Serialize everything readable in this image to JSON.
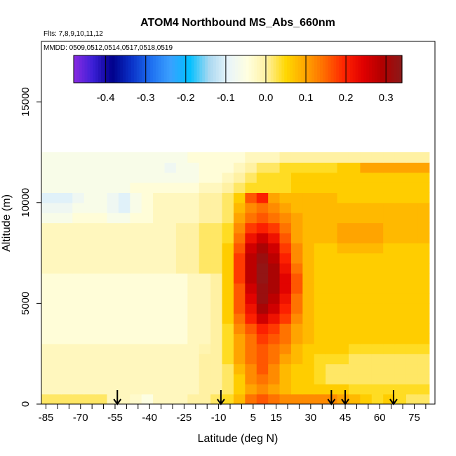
{
  "chart_data": {
    "type": "heatmap",
    "title": "ATOM4 Northbound MS_Abs_660nm",
    "subtitle_flights": "Flts: 7,8,9,10,11,12",
    "subtitle_dates": "MMDD: 0509,0512,0514,0517,0518,0519",
    "xlabel": "Latitude (deg N)",
    "ylabel": "Altitude (m)",
    "xlim": [
      -87,
      84
    ],
    "ylim": [
      0,
      18000
    ],
    "x_ticks": [
      -85,
      -70,
      -55,
      -40,
      -25,
      -10,
      5,
      15,
      30,
      45,
      60,
      75
    ],
    "x_ticks_minor": [
      -80,
      -75,
      -65,
      -60,
      -50,
      -45,
      -35,
      -30,
      -20,
      -15,
      -5,
      0,
      10,
      20,
      25,
      35,
      40,
      50,
      55,
      65,
      70,
      80
    ],
    "y_ticks": [
      0,
      5000,
      10000,
      15000
    ],
    "colorbar": {
      "ticks": [
        -0.4,
        -0.3,
        -0.2,
        -0.1,
        0.0,
        0.1,
        0.2,
        0.3
      ],
      "tick_labels": [
        "-0.4",
        "-0.3",
        "-0.2",
        "-0.1",
        "0.0",
        "0.1",
        "0.2",
        "0.3"
      ],
      "range": [
        -0.48,
        0.34
      ],
      "colors": [
        "#8a2be2",
        "#3b1fd6",
        "#00008b",
        "#0a32c8",
        "#1e6ff0",
        "#3aa0ff",
        "#00bfff",
        "#a8d8f0",
        "#e8f4fa",
        "#ffffe0",
        "#fff0a0",
        "#ffd700",
        "#ffa500",
        "#ff6a00",
        "#ff2400",
        "#e00000",
        "#b00000",
        "#8b1a1a"
      ]
    },
    "arrows_latitude": [
      -54,
      -9,
      39,
      45,
      66
    ],
    "latitude_bins": [
      -86,
      -81,
      -76,
      -71,
      -66,
      -61,
      -56,
      -51,
      -46,
      -41,
      -36,
      -31,
      -26,
      -21,
      -16,
      -11,
      -6,
      -1,
      4,
      9,
      14,
      19,
      24,
      29,
      34,
      39,
      44,
      49,
      54,
      59,
      64,
      69,
      74,
      79
    ],
    "altitude_bins": [
      250,
      750,
      1250,
      1750,
      2250,
      2750,
      3250,
      3750,
      4250,
      4750,
      5250,
      5750,
      6250,
      6750,
      7250,
      7750,
      8250,
      8750,
      9250,
      9750,
      10250,
      10750,
      11250,
      11750,
      12250
    ],
    "values": [
      [
        0.02,
        0.02,
        0.02,
        0.02,
        0.02,
        0.02,
        -0.02,
        -0.02,
        -0.03,
        -0.05,
        -0.02,
        -0.02,
        -0.02,
        0.0,
        0.0,
        0.02,
        0.04,
        0.08,
        0.14,
        0.16,
        0.14,
        0.12,
        0.12,
        0.12,
        0.12,
        0.12,
        0.1,
        0.08,
        0.06,
        0.04,
        0.06,
        0.04,
        0.02,
        0.02
      ],
      [
        -0.02,
        -0.02,
        -0.02,
        -0.02,
        -0.02,
        -0.02,
        -0.02,
        -0.02,
        -0.02,
        -0.02,
        -0.02,
        -0.02,
        -0.02,
        -0.02,
        0.0,
        0.0,
        0.02,
        0.06,
        0.1,
        0.12,
        0.1,
        0.08,
        0.06,
        0.06,
        0.06,
        0.06,
        0.06,
        0.04,
        0.04,
        0.04,
        0.04,
        0.04,
        0.04,
        0.04
      ],
      [
        -0.02,
        -0.02,
        -0.02,
        -0.02,
        -0.02,
        -0.02,
        -0.02,
        -0.02,
        -0.02,
        -0.02,
        -0.02,
        -0.02,
        -0.02,
        -0.02,
        0.0,
        0.0,
        0.02,
        0.06,
        0.12,
        0.14,
        0.12,
        0.08,
        0.06,
        0.06,
        0.04,
        0.02,
        0.02,
        0.02,
        0.02,
        0.02,
        0.02,
        0.02,
        0.02,
        0.02
      ],
      [
        -0.02,
        -0.02,
        -0.02,
        -0.02,
        -0.02,
        -0.02,
        -0.02,
        -0.02,
        -0.02,
        -0.02,
        -0.02,
        -0.02,
        -0.02,
        -0.02,
        0.0,
        0.0,
        0.02,
        0.08,
        0.12,
        0.16,
        0.12,
        0.08,
        0.06,
        0.06,
        0.04,
        0.02,
        0.02,
        0.02,
        0.02,
        0.02,
        0.02,
        0.02,
        0.02,
        0.02
      ],
      [
        -0.02,
        -0.02,
        -0.02,
        -0.02,
        -0.02,
        -0.02,
        -0.02,
        -0.02,
        -0.02,
        -0.02,
        -0.02,
        -0.02,
        -0.02,
        -0.02,
        0.0,
        0.0,
        0.04,
        0.1,
        0.14,
        0.16,
        0.14,
        0.1,
        0.08,
        0.06,
        0.04,
        0.04,
        0.04,
        0.02,
        0.02,
        0.02,
        0.02,
        0.02,
        0.02,
        0.02
      ],
      [
        -0.02,
        -0.02,
        -0.02,
        -0.02,
        -0.02,
        -0.02,
        -0.02,
        -0.02,
        -0.02,
        -0.02,
        -0.02,
        -0.02,
        -0.02,
        -0.02,
        -0.01,
        0.0,
        0.04,
        0.1,
        0.14,
        0.16,
        0.14,
        0.12,
        0.08,
        0.06,
        0.06,
        0.06,
        0.06,
        0.04,
        0.04,
        0.04,
        0.04,
        0.04,
        0.04,
        0.04
      ],
      [
        -0.04,
        -0.04,
        -0.04,
        -0.04,
        -0.04,
        -0.04,
        -0.04,
        -0.04,
        -0.04,
        -0.04,
        -0.04,
        -0.04,
        -0.04,
        -0.02,
        -0.02,
        0.0,
        0.04,
        0.1,
        0.14,
        0.18,
        0.16,
        0.14,
        0.1,
        0.08,
        0.06,
        0.06,
        0.06,
        0.06,
        0.06,
        0.06,
        0.06,
        0.06,
        0.06,
        0.06
      ],
      [
        -0.04,
        -0.04,
        -0.04,
        -0.04,
        -0.04,
        -0.04,
        -0.04,
        -0.04,
        -0.04,
        -0.04,
        -0.04,
        -0.04,
        -0.04,
        -0.02,
        -0.02,
        0.0,
        0.04,
        0.12,
        0.16,
        0.2,
        0.18,
        0.14,
        0.1,
        0.08,
        0.06,
        0.06,
        0.06,
        0.06,
        0.06,
        0.06,
        0.06,
        0.06,
        0.06,
        0.06
      ],
      [
        -0.04,
        -0.04,
        -0.04,
        -0.04,
        -0.04,
        -0.04,
        -0.04,
        -0.04,
        -0.04,
        -0.04,
        -0.04,
        -0.04,
        -0.04,
        -0.02,
        -0.02,
        0.0,
        0.06,
        0.14,
        0.2,
        0.26,
        0.22,
        0.18,
        0.12,
        0.08,
        0.06,
        0.06,
        0.06,
        0.06,
        0.06,
        0.06,
        0.06,
        0.06,
        0.06,
        0.06
      ],
      [
        -0.04,
        -0.04,
        -0.04,
        -0.04,
        -0.04,
        -0.04,
        -0.04,
        -0.04,
        -0.04,
        -0.04,
        -0.04,
        -0.04,
        -0.04,
        -0.02,
        -0.02,
        0.0,
        0.06,
        0.16,
        0.22,
        0.3,
        0.26,
        0.2,
        0.14,
        0.08,
        0.06,
        0.06,
        0.06,
        0.06,
        0.06,
        0.06,
        0.06,
        0.06,
        0.06,
        0.06
      ],
      [
        -0.04,
        -0.04,
        -0.04,
        -0.04,
        -0.04,
        -0.04,
        -0.04,
        -0.04,
        -0.04,
        -0.04,
        -0.04,
        -0.04,
        -0.04,
        -0.02,
        -0.02,
        0.0,
        0.06,
        0.16,
        0.24,
        0.32,
        0.28,
        0.22,
        0.14,
        0.08,
        0.06,
        0.06,
        0.06,
        0.06,
        0.06,
        0.06,
        0.06,
        0.06,
        0.06,
        0.06
      ],
      [
        -0.04,
        -0.04,
        -0.04,
        -0.04,
        -0.04,
        -0.04,
        -0.04,
        -0.04,
        -0.04,
        -0.04,
        -0.04,
        -0.04,
        -0.04,
        -0.02,
        -0.02,
        0.0,
        0.06,
        0.16,
        0.26,
        0.32,
        0.3,
        0.24,
        0.16,
        0.08,
        0.06,
        0.06,
        0.06,
        0.06,
        0.06,
        0.06,
        0.06,
        0.06,
        0.06,
        0.06
      ],
      [
        -0.04,
        -0.04,
        -0.04,
        -0.04,
        -0.04,
        -0.04,
        -0.04,
        -0.04,
        -0.04,
        -0.04,
        -0.04,
        -0.04,
        -0.04,
        -0.02,
        -0.02,
        0.0,
        0.06,
        0.18,
        0.28,
        0.33,
        0.3,
        0.24,
        0.16,
        0.08,
        0.06,
        0.06,
        0.06,
        0.06,
        0.06,
        0.06,
        0.06,
        0.06,
        0.06,
        0.06
      ],
      [
        -0.02,
        -0.02,
        -0.02,
        -0.02,
        -0.02,
        -0.02,
        -0.02,
        -0.02,
        -0.02,
        -0.02,
        -0.02,
        -0.02,
        0.0,
        0.0,
        0.02,
        0.02,
        0.06,
        0.18,
        0.28,
        0.33,
        0.3,
        0.22,
        0.14,
        0.08,
        0.06,
        0.06,
        0.06,
        0.06,
        0.06,
        0.06,
        0.06,
        0.06,
        0.06,
        0.06
      ],
      [
        -0.02,
        -0.02,
        -0.02,
        -0.02,
        -0.02,
        -0.02,
        -0.02,
        -0.02,
        -0.02,
        -0.02,
        -0.02,
        -0.02,
        0.0,
        0.0,
        0.02,
        0.02,
        0.06,
        0.18,
        0.28,
        0.32,
        0.28,
        0.2,
        0.12,
        0.08,
        0.06,
        0.06,
        0.06,
        0.06,
        0.06,
        0.06,
        0.06,
        0.06,
        0.06,
        0.06
      ],
      [
        -0.02,
        -0.02,
        -0.02,
        -0.02,
        -0.02,
        -0.02,
        -0.02,
        -0.02,
        -0.02,
        -0.02,
        -0.02,
        -0.02,
        0.0,
        0.0,
        0.02,
        0.02,
        0.06,
        0.16,
        0.26,
        0.3,
        0.26,
        0.18,
        0.12,
        0.08,
        0.06,
        0.06,
        0.08,
        0.08,
        0.08,
        0.08,
        0.06,
        0.06,
        0.06,
        0.06
      ],
      [
        -0.02,
        -0.02,
        -0.02,
        -0.02,
        -0.02,
        -0.02,
        -0.02,
        -0.02,
        -0.02,
        -0.02,
        -0.02,
        -0.02,
        0.0,
        0.0,
        0.02,
        0.02,
        0.04,
        0.14,
        0.22,
        0.26,
        0.22,
        0.16,
        0.1,
        0.08,
        0.08,
        0.08,
        0.1,
        0.1,
        0.1,
        0.1,
        0.08,
        0.08,
        0.08,
        0.08
      ],
      [
        -0.02,
        -0.02,
        -0.02,
        -0.02,
        -0.02,
        -0.02,
        -0.02,
        -0.02,
        -0.02,
        -0.02,
        -0.02,
        -0.02,
        0.0,
        0.0,
        0.02,
        0.02,
        0.04,
        0.12,
        0.18,
        0.2,
        0.18,
        0.14,
        0.1,
        0.08,
        0.08,
        0.08,
        0.1,
        0.1,
        0.1,
        0.1,
        0.08,
        0.08,
        0.08,
        0.08
      ],
      [
        -0.06,
        -0.06,
        -0.06,
        -0.04,
        -0.04,
        -0.04,
        -0.06,
        -0.06,
        -0.04,
        -0.04,
        -0.02,
        -0.02,
        -0.02,
        -0.02,
        0.0,
        0.0,
        0.02,
        0.1,
        0.14,
        0.16,
        0.14,
        0.12,
        0.1,
        0.08,
        0.08,
        0.08,
        0.08,
        0.08,
        0.08,
        0.08,
        0.08,
        0.08,
        0.08,
        0.08
      ],
      [
        -0.08,
        -0.08,
        -0.08,
        -0.06,
        -0.06,
        -0.06,
        -0.08,
        -0.1,
        -0.06,
        -0.04,
        -0.02,
        -0.02,
        -0.02,
        -0.02,
        0.0,
        0.0,
        0.02,
        0.08,
        0.12,
        0.14,
        0.12,
        0.1,
        0.08,
        0.08,
        0.08,
        0.08,
        0.08,
        0.08,
        0.08,
        0.08,
        0.08,
        0.08,
        0.08,
        0.08
      ],
      [
        -0.1,
        -0.1,
        -0.1,
        -0.08,
        -0.06,
        -0.06,
        -0.08,
        -0.1,
        -0.06,
        -0.04,
        -0.02,
        -0.02,
        -0.02,
        -0.02,
        0.0,
        0.0,
        0.02,
        0.06,
        0.16,
        0.2,
        0.1,
        0.08,
        0.08,
        0.08,
        0.08,
        0.08,
        0.06,
        0.06,
        0.06,
        0.06,
        0.06,
        0.06,
        0.06,
        0.06
      ],
      [
        -0.06,
        -0.06,
        -0.06,
        -0.06,
        -0.06,
        -0.06,
        -0.06,
        -0.06,
        -0.04,
        -0.04,
        -0.04,
        -0.04,
        -0.04,
        -0.04,
        -0.02,
        -0.02,
        0.0,
        0.02,
        0.04,
        0.04,
        0.04,
        0.04,
        0.06,
        0.06,
        0.06,
        0.06,
        0.06,
        0.06,
        0.06,
        0.06,
        0.06,
        0.06,
        0.06,
        0.06
      ],
      [
        -0.06,
        -0.06,
        -0.06,
        -0.06,
        -0.06,
        -0.06,
        -0.06,
        -0.06,
        -0.06,
        -0.06,
        -0.06,
        -0.06,
        -0.06,
        -0.06,
        -0.04,
        -0.04,
        -0.02,
        0.0,
        0.02,
        0.04,
        0.04,
        0.04,
        0.06,
        0.06,
        0.06,
        0.06,
        0.06,
        0.06,
        0.06,
        0.06,
        0.06,
        0.06,
        0.06,
        0.06
      ],
      [
        -0.06,
        -0.06,
        -0.06,
        -0.06,
        -0.06,
        -0.06,
        -0.06,
        -0.06,
        -0.06,
        -0.06,
        -0.06,
        -0.08,
        -0.06,
        -0.06,
        -0.04,
        -0.04,
        -0.04,
        -0.02,
        0.0,
        0.02,
        0.02,
        0.04,
        0.04,
        0.04,
        0.04,
        0.04,
        0.06,
        0.06,
        0.1,
        0.1,
        0.1,
        0.1,
        0.1,
        0.1
      ],
      [
        -0.06,
        -0.06,
        -0.06,
        -0.06,
        -0.06,
        -0.06,
        -0.06,
        -0.06,
        -0.06,
        -0.06,
        -0.06,
        -0.06,
        -0.06,
        -0.04,
        -0.04,
        -0.04,
        -0.04,
        -0.04,
        -0.02,
        -0.02,
        -0.02,
        0.0,
        0.0,
        0.0,
        0.0,
        0.0,
        0.0,
        0.0,
        0.0,
        0.0,
        0.0,
        0.0,
        0.0,
        0.0
      ]
    ]
  }
}
